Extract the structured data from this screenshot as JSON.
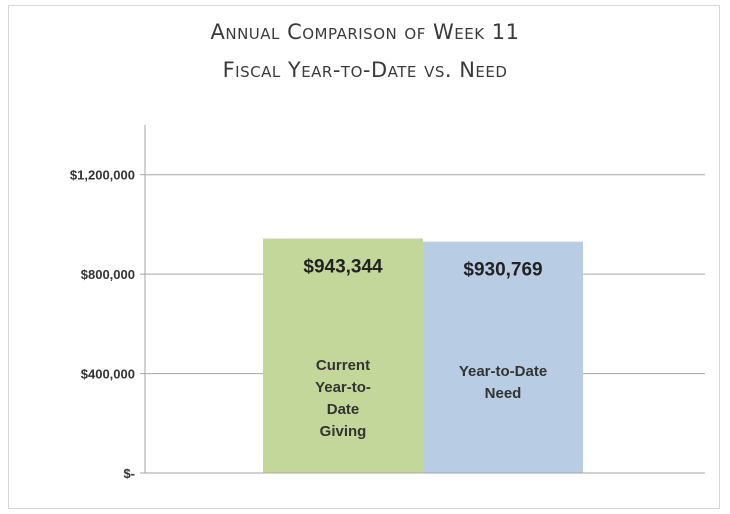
{
  "chart_data": {
    "type": "bar",
    "title": [
      "Annual Comparison of Week 11",
      "Fiscal Year-to-Date vs. Need"
    ],
    "categories": [
      [
        "Current",
        "Year-to-",
        "Date",
        "Giving"
      ],
      [
        "Year-to-Date",
        "Need"
      ]
    ],
    "values": [
      943344,
      930769
    ],
    "value_labels": [
      "$943,344",
      "$930,769"
    ],
    "colors": [
      "#c4d79b",
      "#b8cce4"
    ],
    "ylim": [
      0,
      1400000
    ],
    "yticks": [
      0,
      400000,
      800000,
      1200000
    ],
    "ytick_labels": [
      "$-",
      "$400,000",
      "$800,000",
      "$1,200,000"
    ],
    "xlabel": "",
    "ylabel": "",
    "grid": true,
    "legend": "none"
  }
}
